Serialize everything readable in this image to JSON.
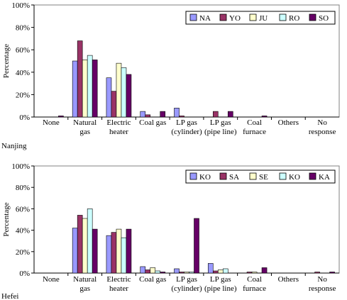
{
  "chart_data": [
    {
      "type": "bar",
      "city_label": "Nanjing",
      "ylabel": "Percentage",
      "ylim": [
        0,
        100
      ],
      "yticks": [
        "0%",
        "20%",
        "40%",
        "60%",
        "80%",
        "100%"
      ],
      "categories": [
        "None",
        "Natural gas",
        "Electric heater",
        "Coal gas",
        "LP gas (cylinder)",
        "LP gas (pipe line)",
        "Coal furnace",
        "Others",
        "No response"
      ],
      "category_lines": [
        [
          "None"
        ],
        [
          "Natural",
          "gas"
        ],
        [
          "Electric",
          "heater"
        ],
        [
          "Coal gas"
        ],
        [
          "LP gas",
          "(cylinder)"
        ],
        [
          "LP gas",
          "(pipe line)"
        ],
        [
          "Coal",
          "furnace"
        ],
        [
          "Others"
        ],
        [
          "No",
          "response"
        ]
      ],
      "legend_position": "top-right",
      "grid": false,
      "series": [
        {
          "name": "NA",
          "color": "#9999ff",
          "values": [
            0,
            50,
            35,
            5,
            8,
            0,
            0,
            0,
            0
          ]
        },
        {
          "name": "YO",
          "color": "#993366",
          "values": [
            0,
            68,
            23,
            2,
            1,
            5,
            0,
            0,
            0
          ]
        },
        {
          "name": "JU",
          "color": "#ffffcc",
          "values": [
            0,
            51,
            48,
            0,
            0,
            0,
            0,
            0,
            0
          ]
        },
        {
          "name": "RO",
          "color": "#ccffff",
          "values": [
            0,
            55,
            44,
            0,
            0,
            0,
            0,
            0,
            0
          ]
        },
        {
          "name": "SO",
          "color": "#660066",
          "values": [
            1,
            51,
            38,
            5,
            0,
            5,
            1,
            0,
            0
          ]
        }
      ]
    },
    {
      "type": "bar",
      "city_label": "Hefei",
      "ylabel": "Percentage",
      "ylim": [
        0,
        100
      ],
      "yticks": [
        "0%",
        "20%",
        "40%",
        "60%",
        "80%",
        "100%"
      ],
      "categories": [
        "None",
        "Natural gas",
        "Electric heater",
        "Coal gas",
        "LP gas (cylinder)",
        "LP gas (pipe line)",
        "Coal furnace",
        "Others",
        "No response"
      ],
      "category_lines": [
        [
          "None"
        ],
        [
          "Natural",
          "gas"
        ],
        [
          "Electric",
          "heater"
        ],
        [
          "Coal gas"
        ],
        [
          "LP gas",
          "(cylinder)"
        ],
        [
          "LP gas",
          "(pipe line)"
        ],
        [
          "Coal",
          "furnace"
        ],
        [
          "Others"
        ],
        [
          "No",
          "response"
        ]
      ],
      "legend_position": "top-right",
      "grid": false,
      "series": [
        {
          "name": "KO",
          "color": "#9999ff",
          "values": [
            0,
            42,
            35,
            6,
            4,
            9,
            0,
            0,
            0
          ]
        },
        {
          "name": "SA",
          "color": "#993366",
          "values": [
            0,
            54,
            38,
            3,
            1,
            2,
            1,
            0,
            1
          ]
        },
        {
          "name": "SE",
          "color": "#ffffcc",
          "values": [
            0,
            51,
            41,
            5,
            1,
            3,
            1,
            0,
            0
          ]
        },
        {
          "name": "KO",
          "color": "#ccffff",
          "values": [
            0,
            60,
            33,
            2,
            1,
            4,
            0,
            0,
            0
          ]
        },
        {
          "name": "KA",
          "color": "#660066",
          "values": [
            0,
            41,
            41,
            1,
            51,
            0,
            5,
            0,
            1
          ]
        }
      ]
    }
  ]
}
